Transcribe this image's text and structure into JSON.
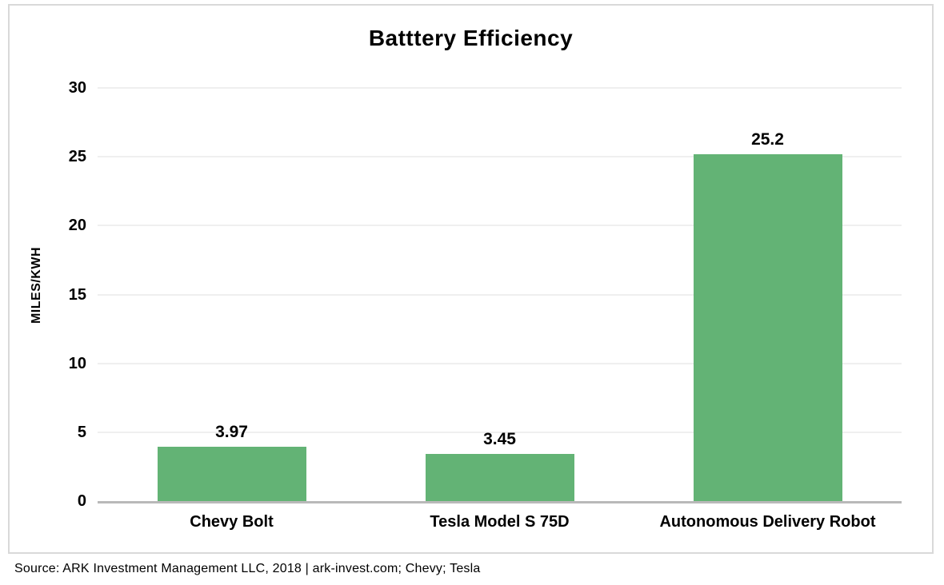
{
  "chart_data": {
    "type": "bar",
    "title": "Batttery Efficiency",
    "ylabel": "MILES/KWH",
    "xlabel": "",
    "categories": [
      "Chevy Bolt",
      "Tesla Model S 75D",
      "Autonomous Delivery Robot"
    ],
    "values": [
      3.97,
      3.45,
      25.2
    ],
    "value_labels": [
      "3.97",
      "3.45",
      "25.2"
    ],
    "ylim": [
      0,
      30
    ],
    "yticks": [
      0,
      5,
      10,
      15,
      20,
      25,
      30
    ],
    "grid": true,
    "legend": false,
    "bar_color": "#63B375"
  },
  "source": {
    "text": "Source: ARK Investment Management LLC, 2018 | ark-invest.com; Chevy; Tesla"
  },
  "colors": {
    "bar": "#63B375",
    "gridline": "#EFEFEF",
    "baseline": "#B9B9B9",
    "frame_border": "#D9D9D9",
    "text": "#000000"
  }
}
